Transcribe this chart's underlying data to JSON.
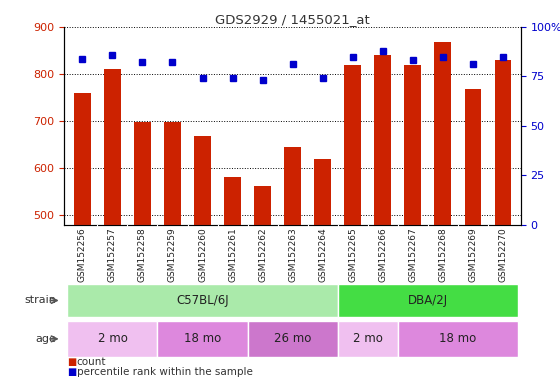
{
  "title": "GDS2929 / 1455021_at",
  "samples": [
    "GSM152256",
    "GSM152257",
    "GSM152258",
    "GSM152259",
    "GSM152260",
    "GSM152261",
    "GSM152262",
    "GSM152263",
    "GSM152264",
    "GSM152265",
    "GSM152266",
    "GSM152267",
    "GSM152268",
    "GSM152269",
    "GSM152270"
  ],
  "counts": [
    760,
    810,
    698,
    698,
    668,
    582,
    562,
    645,
    620,
    820,
    840,
    820,
    868,
    768,
    830
  ],
  "percentile_ranks": [
    84,
    86,
    82,
    82,
    74,
    74,
    73,
    81,
    74,
    85,
    88,
    83,
    85,
    81,
    85
  ],
  "ylim_left": [
    480,
    900
  ],
  "ylim_right": [
    0,
    100
  ],
  "yticks_left": [
    500,
    600,
    700,
    800,
    900
  ],
  "yticks_right": [
    0,
    25,
    50,
    75,
    100
  ],
  "bar_color": "#cc2200",
  "dot_color": "#0000cc",
  "grid_color": "#000000",
  "strain_groups": [
    {
      "label": "C57BL/6J",
      "start": 0,
      "end": 9,
      "color": "#aaeaaa"
    },
    {
      "label": "DBA/2J",
      "start": 9,
      "end": 15,
      "color": "#44dd44"
    }
  ],
  "age_groups": [
    {
      "label": "2 mo",
      "start": 0,
      "end": 3,
      "color": "#f0c0f0"
    },
    {
      "label": "18 mo",
      "start": 3,
      "end": 6,
      "color": "#dd88dd"
    },
    {
      "label": "26 mo",
      "start": 6,
      "end": 9,
      "color": "#cc77cc"
    },
    {
      "label": "2 mo",
      "start": 9,
      "end": 11,
      "color": "#f0c0f0"
    },
    {
      "label": "18 mo",
      "start": 11,
      "end": 15,
      "color": "#dd88dd"
    }
  ],
  "tick_label_color_left": "#cc2200",
  "tick_label_color_right": "#0000cc",
  "legend": [
    {
      "label": "count",
      "color": "#cc2200"
    },
    {
      "label": "percentile rank within the sample",
      "color": "#0000cc"
    }
  ]
}
